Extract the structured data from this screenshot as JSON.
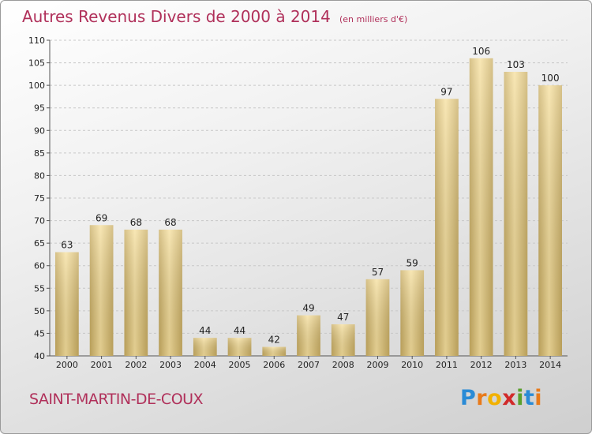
{
  "title": "Autres Revenus Divers de 2000 à 2014",
  "unit": "(en milliers d'€)",
  "commune": "SAINT-MARTIN-DE-COUX",
  "brand": {
    "letters": [
      "P",
      "r",
      "o",
      "x",
      "i",
      "t",
      "i"
    ],
    "colors": [
      "#2a8bd6",
      "#e87a1a",
      "#f2b100",
      "#d12a2a",
      "#5aa02c",
      "#2a8bd6",
      "#e87a1a"
    ]
  },
  "colors": {
    "title": "#b0305a",
    "bar_light": "#f6df9c",
    "bar_dark": "#c9ad62"
  },
  "chart_data": {
    "type": "bar",
    "categories": [
      "2000",
      "2001",
      "2002",
      "2003",
      "2004",
      "2005",
      "2006",
      "2007",
      "2008",
      "2009",
      "2010",
      "2011",
      "2012",
      "2013",
      "2014"
    ],
    "values": [
      63,
      69,
      68,
      68,
      44,
      44,
      42,
      49,
      47,
      57,
      59,
      97,
      106,
      103,
      100
    ],
    "ylim": [
      40,
      110
    ],
    "yticks": [
      40,
      45,
      50,
      55,
      60,
      65,
      70,
      75,
      80,
      85,
      90,
      95,
      100,
      105,
      110
    ],
    "grid": true
  }
}
